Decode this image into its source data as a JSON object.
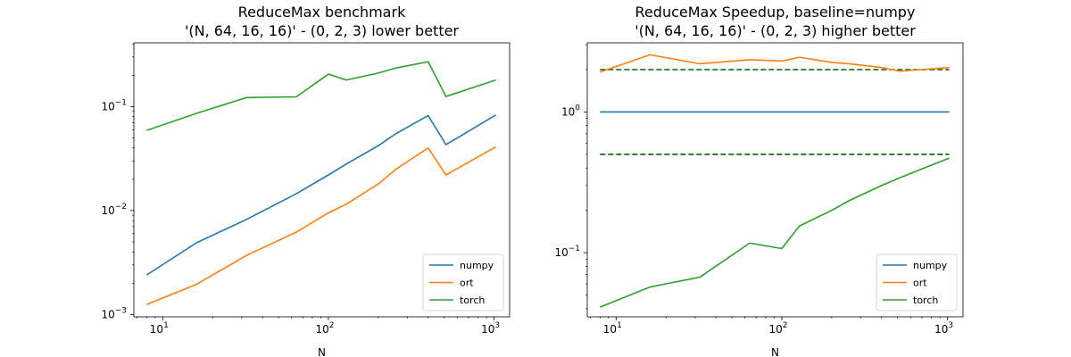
{
  "chart_data": [
    {
      "type": "line",
      "title_line1": "ReduceMax benchmark",
      "title_line2": "'(N, 64, 16, 16)' - (0, 2, 3) lower better",
      "xlabel": "N",
      "ylabel": "",
      "xscale": "log",
      "yscale": "log",
      "xlim": [
        6.7,
        1240
      ],
      "ylim": [
        0.00095,
        0.41
      ],
      "x_ticks": [
        {
          "v": 10,
          "b": "10",
          "e": "1"
        },
        {
          "v": 100,
          "b": "10",
          "e": "2"
        },
        {
          "v": 1000,
          "b": "10",
          "e": "3"
        }
      ],
      "y_ticks": [
        {
          "v": 0.001,
          "b": "10",
          "e": "−3"
        },
        {
          "v": 0.01,
          "b": "10",
          "e": "−2"
        },
        {
          "v": 0.1,
          "b": "10",
          "e": "−1"
        }
      ],
      "legend_position": "lower-right",
      "x": [
        8,
        16,
        32,
        64,
        100,
        128,
        200,
        256,
        400,
        512,
        1024
      ],
      "series": [
        {
          "name": "numpy",
          "color": "#1f77b4",
          "values": [
            0.0024,
            0.0049,
            0.0082,
            0.0145,
            0.022,
            0.028,
            0.042,
            0.055,
            0.082,
            0.043,
            0.083
          ]
        },
        {
          "name": "ort",
          "color": "#ff7f0e",
          "values": [
            0.00125,
            0.00195,
            0.0037,
            0.0062,
            0.0095,
            0.0115,
            0.018,
            0.025,
            0.04,
            0.022,
            0.041
          ]
        },
        {
          "name": "torch",
          "color": "#2ca02c",
          "values": [
            0.059,
            0.086,
            0.122,
            0.124,
            0.205,
            0.18,
            0.21,
            0.235,
            0.27,
            0.125,
            0.18
          ]
        }
      ],
      "reference_lines": []
    },
    {
      "type": "line",
      "title_line1": "ReduceMax Speedup, baseline=numpy",
      "title_line2": "'(N, 64, 16, 16)' - (0, 2, 3) higher better",
      "xlabel": "N",
      "ylabel": "",
      "xscale": "log",
      "yscale": "log",
      "xlim": [
        6.7,
        1240
      ],
      "ylim": [
        0.035,
        3.1
      ],
      "x_ticks": [
        {
          "v": 10,
          "b": "10",
          "e": "1"
        },
        {
          "v": 100,
          "b": "10",
          "e": "2"
        },
        {
          "v": 1000,
          "b": "10",
          "e": "3"
        }
      ],
      "y_ticks": [
        {
          "v": 0.1,
          "b": "10",
          "e": "−1"
        },
        {
          "v": 1,
          "b": "10",
          "e": "0"
        }
      ],
      "legend_position": "lower-right",
      "x": [
        8,
        16,
        32,
        64,
        100,
        128,
        200,
        256,
        400,
        512,
        1024
      ],
      "series": [
        {
          "name": "numpy",
          "color": "#1f77b4",
          "values": [
            1,
            1,
            1,
            1,
            1,
            1,
            1,
            1,
            1,
            1,
            1
          ]
        },
        {
          "name": "ort",
          "color": "#ff7f0e",
          "values": [
            1.92,
            2.55,
            2.2,
            2.35,
            2.3,
            2.45,
            2.25,
            2.2,
            2.07,
            1.95,
            2.07
          ]
        },
        {
          "name": "torch",
          "color": "#2ca02c",
          "values": [
            0.041,
            0.057,
            0.067,
            0.117,
            0.107,
            0.155,
            0.2,
            0.235,
            0.3,
            0.34,
            0.47
          ]
        }
      ],
      "reference_lines": [
        {
          "value": 2,
          "color": "#006400",
          "style": "dashed"
        },
        {
          "value": 0.5,
          "color": "#006400",
          "style": "dashed"
        }
      ]
    }
  ]
}
